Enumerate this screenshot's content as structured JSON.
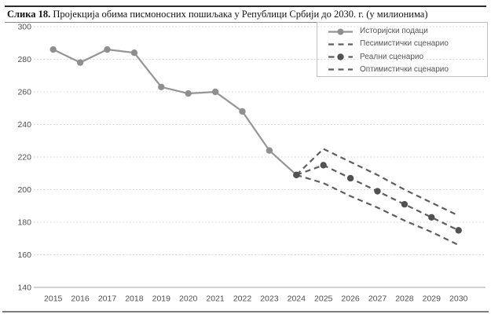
{
  "figure": {
    "label": "Слика 18.",
    "title": "Пројекција обима писмоносних пошиљака у Републици Србији до 2030. г. (у милионима)"
  },
  "chart_data": {
    "type": "line",
    "title": "Пројекција обима писмоносних пошиљака у Републици Србији до 2030. г. (у милионима)",
    "xlabel": "",
    "ylabel": "",
    "x_ticks": [
      2015,
      2016,
      2017,
      2018,
      2019,
      2020,
      2021,
      2022,
      2023,
      2024,
      2025,
      2026,
      2027,
      2028,
      2029,
      2030
    ],
    "y_ticks": [
      140,
      160,
      180,
      200,
      220,
      240,
      260,
      280,
      300
    ],
    "ylim": [
      140,
      300
    ],
    "grid": "horizontal-dotted",
    "legend_position": "top-right",
    "colors": {
      "historical_line": "#959595",
      "historical_marker": "#8f8f8f",
      "scenario_line": "#5e5e5e",
      "scenario_marker": "#525252"
    },
    "series": [
      {
        "name": "Историјски подаци",
        "style": "solid",
        "markers": true,
        "color": "#959595",
        "marker_color": "#8f8f8f",
        "x": [
          2015,
          2016,
          2017,
          2018,
          2019,
          2020,
          2021,
          2022,
          2023,
          2024
        ],
        "values": [
          286,
          278,
          286,
          284,
          263,
          259,
          260,
          248,
          224,
          209
        ]
      },
      {
        "name": "Песимистички сценарио",
        "style": "dashed",
        "markers": false,
        "color": "#5e5e5e",
        "x": [
          2024,
          2025,
          2026,
          2027,
          2028,
          2029,
          2030
        ],
        "values": [
          209,
          204,
          196,
          189,
          181,
          174,
          166
        ]
      },
      {
        "name": "Реални сценарио",
        "style": "dashed",
        "markers": true,
        "color": "#5e5e5e",
        "marker_color": "#525252",
        "x": [
          2024,
          2025,
          2026,
          2027,
          2028,
          2029,
          2030
        ],
        "values": [
          209,
          215,
          207,
          199,
          191,
          183,
          175
        ]
      },
      {
        "name": "Оптимистички сценарио",
        "style": "dashed",
        "markers": false,
        "color": "#5e5e5e",
        "x": [
          2024,
          2025,
          2026,
          2027,
          2028,
          2029,
          2030
        ],
        "values": [
          209,
          225,
          217,
          209,
          200,
          192,
          184
        ]
      }
    ]
  }
}
